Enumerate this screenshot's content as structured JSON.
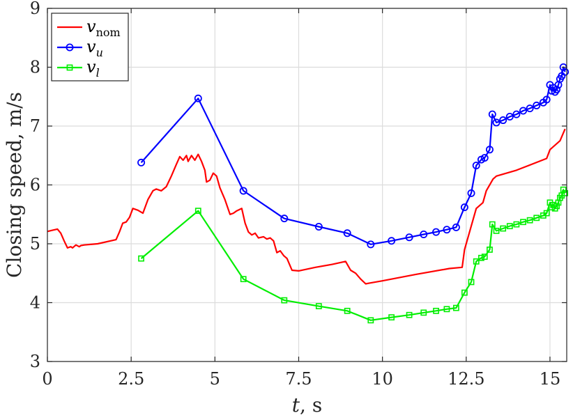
{
  "chart_data": {
    "type": "line",
    "title": "",
    "xlabel_var": "t",
    "xlabel_unit": ", s",
    "ylabel": "Closing speed, m/s",
    "xlim": [
      0,
      15.5
    ],
    "ylim": [
      3,
      9
    ],
    "x_ticks": [
      0,
      2.5,
      5,
      7.5,
      10,
      12.5,
      15
    ],
    "x_tick_labels": [
      "0",
      "2.5",
      "5",
      "7.5",
      "10",
      "12.5",
      "15"
    ],
    "y_ticks": [
      3,
      4,
      5,
      6,
      7,
      8,
      9
    ],
    "y_tick_labels": [
      "3",
      "4",
      "5",
      "6",
      "7",
      "8",
      "9"
    ],
    "grid": true,
    "legend_position": "top-left",
    "series": [
      {
        "name_var": "v",
        "name_sub": "nom",
        "color": "#ff0000",
        "marker": "none",
        "x": [
          0,
          0.15,
          0.3,
          0.4,
          0.5,
          0.6,
          0.7,
          0.75,
          0.85,
          0.95,
          1.0,
          1.1,
          1.5,
          2.05,
          2.15,
          2.25,
          2.35,
          2.45,
          2.55,
          2.7,
          2.85,
          3.0,
          3.15,
          3.25,
          3.4,
          3.55,
          3.7,
          3.85,
          3.95,
          4.05,
          4.15,
          4.2,
          4.3,
          4.4,
          4.5,
          4.6,
          4.7,
          4.75,
          4.85,
          4.95,
          5.05,
          5.15,
          5.3,
          5.45,
          5.55,
          5.65,
          5.8,
          5.9,
          6.0,
          6.1,
          6.2,
          6.3,
          6.45,
          6.55,
          6.65,
          6.75,
          6.85,
          6.95,
          7.05,
          7.15,
          7.3,
          7.5,
          8.0,
          8.5,
          8.9,
          9.05,
          9.2,
          9.35,
          9.5,
          9.6,
          10.0,
          11.0,
          12.0,
          12.38,
          12.45,
          12.6,
          12.7,
          12.8,
          13.0,
          13.1,
          13.3,
          13.4,
          14.0,
          14.9,
          15.0,
          15.1,
          15.3,
          15.45
        ],
        "y": [
          5.21,
          5.23,
          5.25,
          5.18,
          5.05,
          4.93,
          4.95,
          4.93,
          4.98,
          4.95,
          4.97,
          4.98,
          5.0,
          5.07,
          5.2,
          5.35,
          5.37,
          5.45,
          5.6,
          5.57,
          5.52,
          5.75,
          5.9,
          5.93,
          5.9,
          5.97,
          6.15,
          6.35,
          6.48,
          6.42,
          6.5,
          6.4,
          6.5,
          6.42,
          6.52,
          6.4,
          6.25,
          6.05,
          6.08,
          6.2,
          6.15,
          5.95,
          5.75,
          5.5,
          5.52,
          5.56,
          5.6,
          5.35,
          5.2,
          5.15,
          5.18,
          5.1,
          5.12,
          5.08,
          5.1,
          5.05,
          4.85,
          4.88,
          4.8,
          4.75,
          4.55,
          4.54,
          4.6,
          4.65,
          4.7,
          4.55,
          4.5,
          4.4,
          4.32,
          4.33,
          4.37,
          4.48,
          4.58,
          4.6,
          4.9,
          5.2,
          5.4,
          5.6,
          5.7,
          5.9,
          6.1,
          6.15,
          6.25,
          6.45,
          6.6,
          6.65,
          6.75,
          6.95
        ]
      },
      {
        "name_var": "v",
        "name_sub": "u",
        "color": "#0000ff",
        "marker": "circle",
        "x": [
          2.8,
          4.5,
          5.85,
          7.07,
          8.1,
          8.95,
          9.65,
          10.27,
          10.8,
          11.23,
          11.6,
          11.92,
          12.2,
          12.45,
          12.65,
          12.8,
          12.95,
          13.05,
          13.2,
          13.28,
          13.4,
          13.6,
          13.8,
          14.0,
          14.2,
          14.4,
          14.6,
          14.8,
          14.9,
          15.0,
          15.05,
          15.1,
          15.15,
          15.2,
          15.25,
          15.3,
          15.35,
          15.4,
          15.45
        ],
        "y": [
          6.38,
          7.47,
          5.9,
          5.43,
          5.29,
          5.18,
          4.99,
          5.05,
          5.11,
          5.16,
          5.2,
          5.24,
          5.28,
          5.62,
          5.86,
          6.33,
          6.43,
          6.46,
          6.6,
          7.2,
          7.06,
          7.1,
          7.16,
          7.2,
          7.26,
          7.3,
          7.35,
          7.4,
          7.45,
          7.7,
          7.6,
          7.65,
          7.58,
          7.62,
          7.7,
          7.8,
          7.85,
          8.0,
          7.92
        ]
      },
      {
        "name_var": "v",
        "name_sub": "l",
        "color": "#00ee00",
        "marker": "square",
        "x": [
          2.8,
          4.5,
          5.85,
          7.07,
          8.1,
          8.95,
          9.65,
          10.27,
          10.8,
          11.23,
          11.6,
          11.92,
          12.2,
          12.45,
          12.65,
          12.8,
          12.95,
          13.05,
          13.2,
          13.28,
          13.4,
          13.6,
          13.8,
          14.0,
          14.2,
          14.4,
          14.6,
          14.8,
          14.9,
          15.0,
          15.05,
          15.1,
          15.15,
          15.2,
          15.25,
          15.3,
          15.35,
          15.4,
          15.45
        ],
        "y": [
          4.75,
          5.56,
          4.4,
          4.04,
          3.94,
          3.86,
          3.7,
          3.75,
          3.79,
          3.83,
          3.86,
          3.89,
          3.91,
          4.17,
          4.35,
          4.7,
          4.76,
          4.78,
          4.9,
          5.33,
          5.22,
          5.26,
          5.3,
          5.33,
          5.37,
          5.4,
          5.44,
          5.48,
          5.52,
          5.7,
          5.62,
          5.66,
          5.6,
          5.64,
          5.7,
          5.78,
          5.82,
          5.92,
          5.86
        ]
      }
    ]
  }
}
